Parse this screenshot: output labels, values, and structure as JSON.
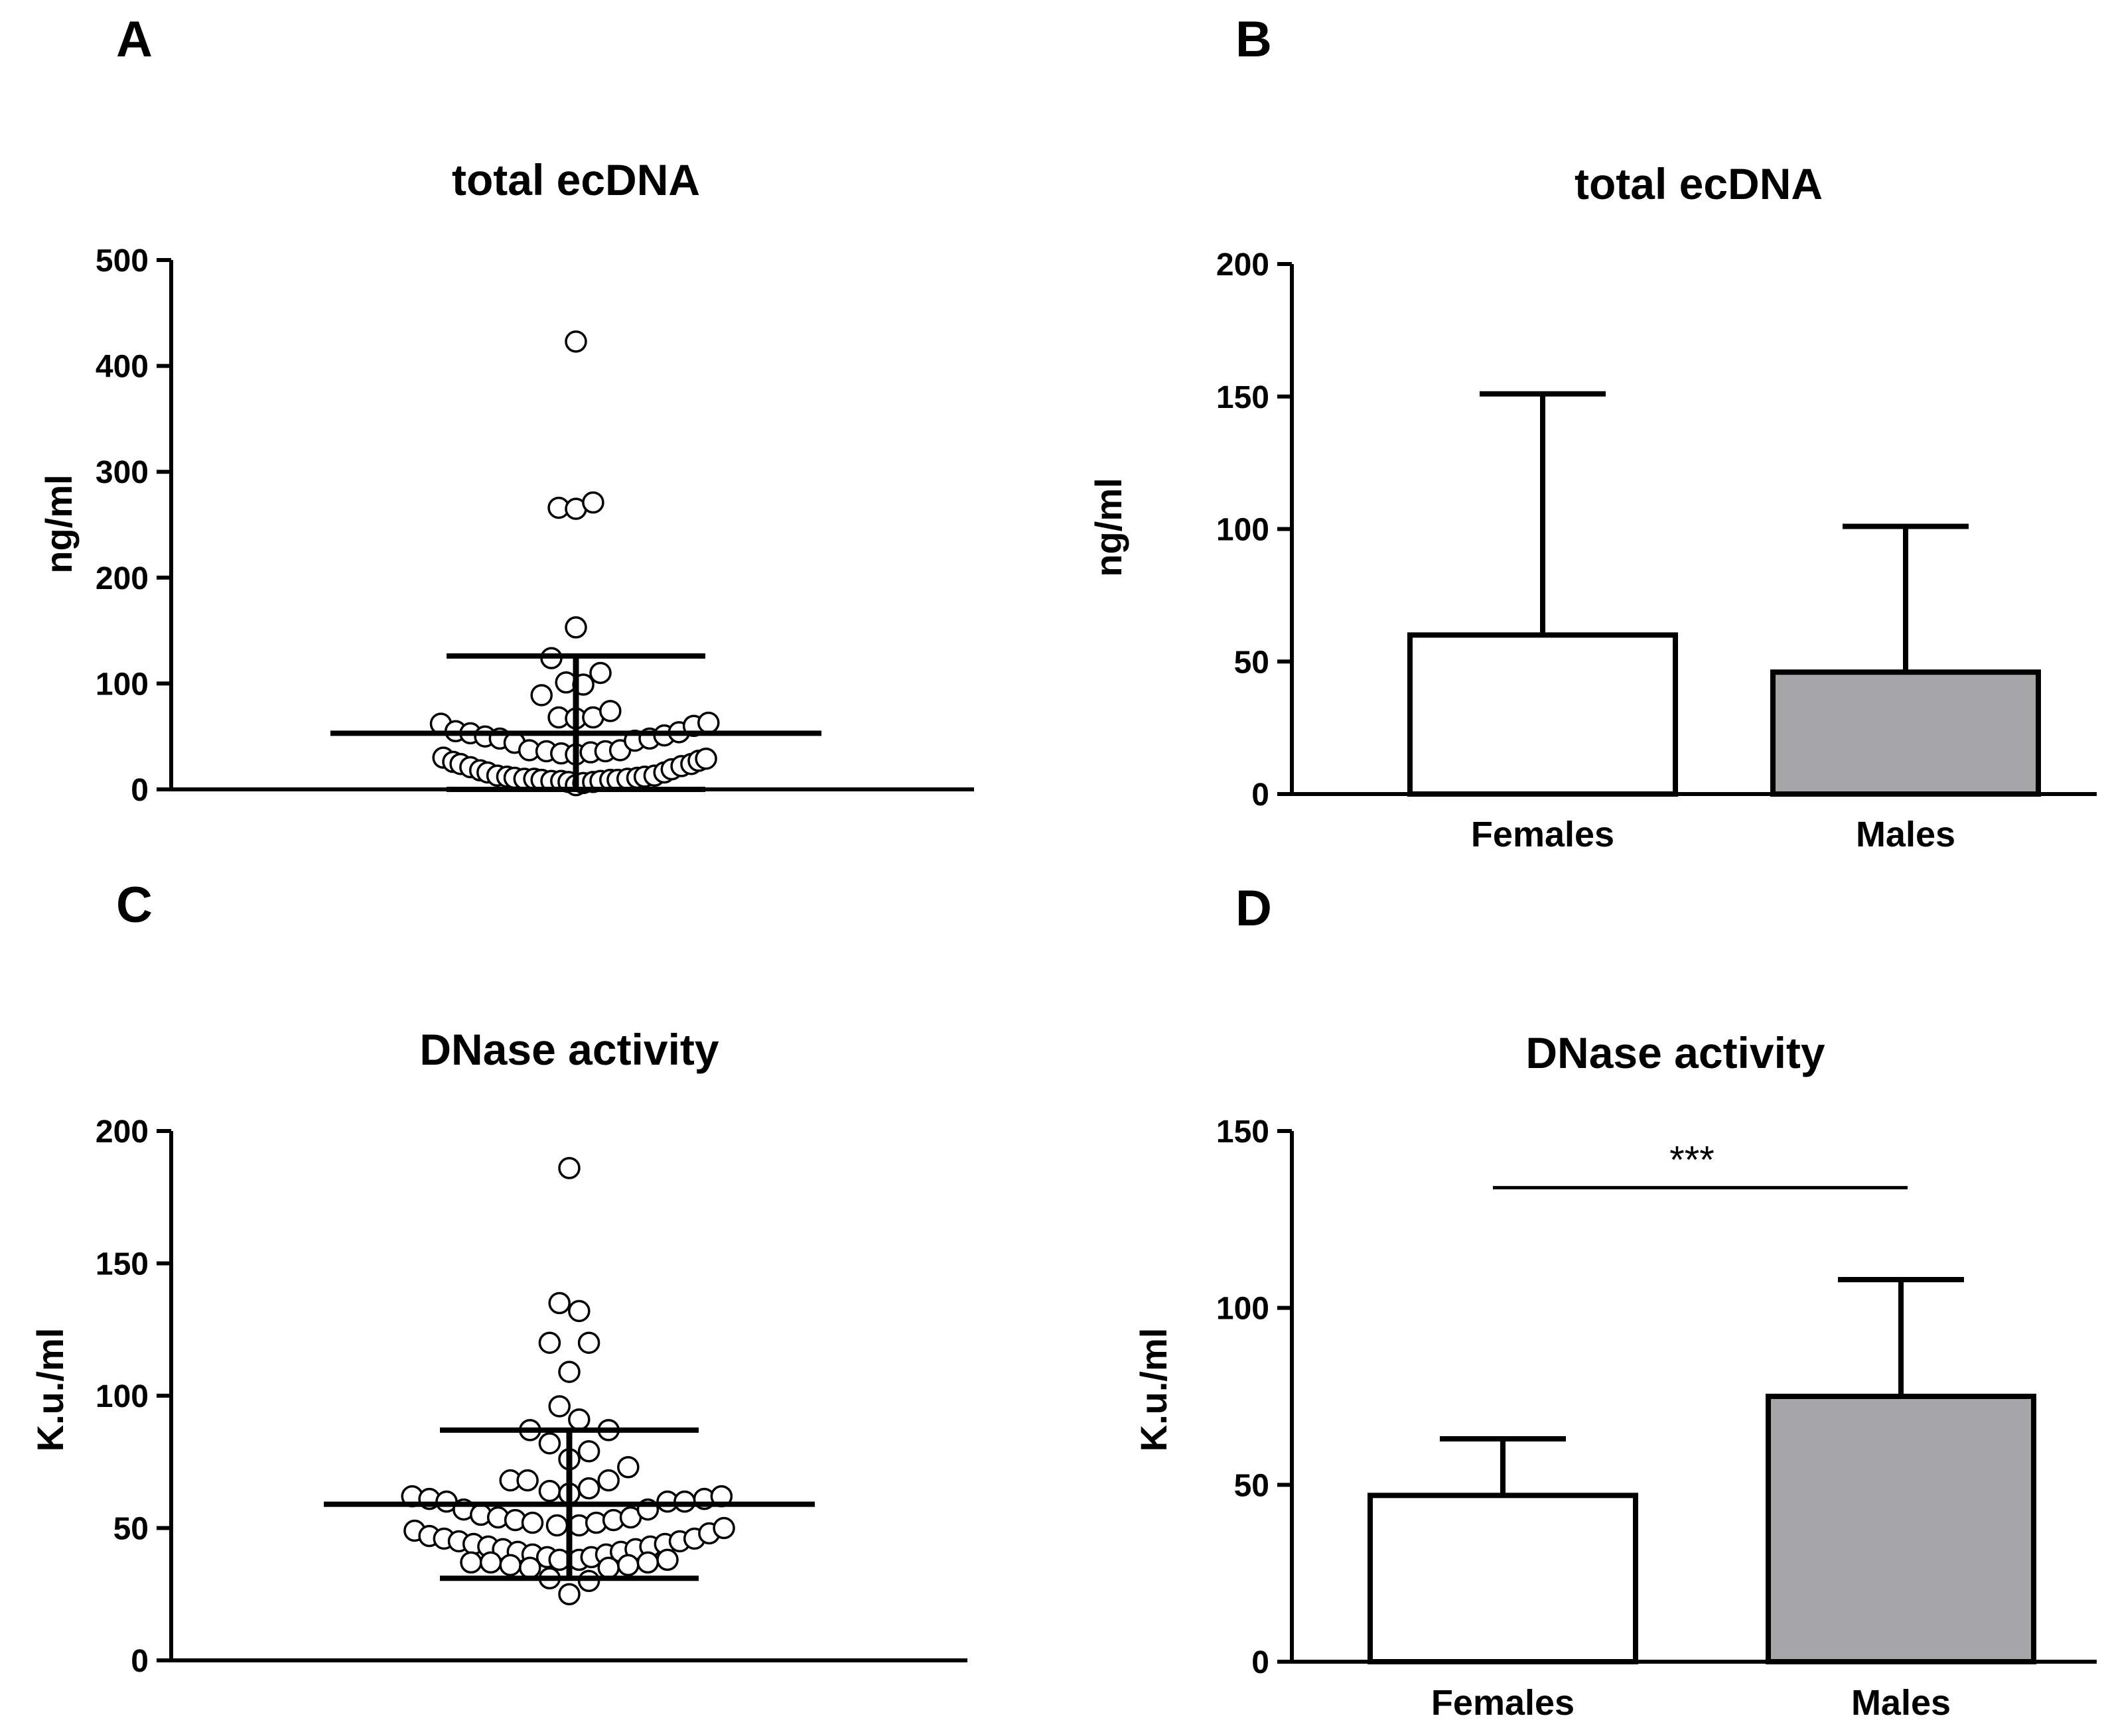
{
  "colors": {
    "ink": "#000000",
    "female_bar": "#ffffff",
    "male_bar": "#a6a6a9",
    "background": "#ffffff"
  },
  "chart_data": [
    {
      "panel": "A",
      "type": "scatter",
      "title": "total ecDNA",
      "xlabel": "",
      "ylabel": "ng/ml",
      "ylim": [
        0,
        500
      ],
      "yticks": [
        "0",
        "100",
        "200",
        "300",
        "400",
        "500"
      ],
      "ytick_values": [
        0,
        100,
        200,
        300,
        400,
        500
      ],
      "summary": {
        "mean": 53,
        "upper": 126,
        "lower": 0
      },
      "points": [
        {
          "x": 0.0,
          "y": 423
        },
        {
          "x": -0.07,
          "y": 266
        },
        {
          "x": 0.0,
          "y": 265
        },
        {
          "x": 0.07,
          "y": 271
        },
        {
          "x": 0.0,
          "y": 153
        },
        {
          "x": -0.1,
          "y": 124
        },
        {
          "x": 0.1,
          "y": 110
        },
        {
          "x": -0.04,
          "y": 101
        },
        {
          "x": 0.03,
          "y": 99
        },
        {
          "x": -0.14,
          "y": 89
        },
        {
          "x": -0.07,
          "y": 68
        },
        {
          "x": 0.0,
          "y": 67
        },
        {
          "x": 0.07,
          "y": 68
        },
        {
          "x": 0.14,
          "y": 74
        },
        {
          "x": -0.55,
          "y": 62
        },
        {
          "x": -0.49,
          "y": 55
        },
        {
          "x": -0.43,
          "y": 53
        },
        {
          "x": -0.37,
          "y": 50
        },
        {
          "x": -0.31,
          "y": 48
        },
        {
          "x": -0.25,
          "y": 44
        },
        {
          "x": -0.19,
          "y": 37
        },
        {
          "x": -0.12,
          "y": 36
        },
        {
          "x": -0.06,
          "y": 34
        },
        {
          "x": 0.0,
          "y": 33
        },
        {
          "x": 0.06,
          "y": 35
        },
        {
          "x": 0.12,
          "y": 36
        },
        {
          "x": 0.18,
          "y": 37
        },
        {
          "x": 0.24,
          "y": 46
        },
        {
          "x": 0.3,
          "y": 48
        },
        {
          "x": 0.36,
          "y": 51
        },
        {
          "x": 0.42,
          "y": 54
        },
        {
          "x": 0.48,
          "y": 60
        },
        {
          "x": 0.54,
          "y": 63
        },
        {
          "x": -0.54,
          "y": 30
        },
        {
          "x": -0.5,
          "y": 26
        },
        {
          "x": -0.47,
          "y": 24
        },
        {
          "x": -0.43,
          "y": 21
        },
        {
          "x": -0.39,
          "y": 18
        },
        {
          "x": -0.36,
          "y": 16
        },
        {
          "x": -0.32,
          "y": 13
        },
        {
          "x": -0.28,
          "y": 12
        },
        {
          "x": -0.25,
          "y": 11
        },
        {
          "x": -0.21,
          "y": 10
        },
        {
          "x": -0.17,
          "y": 10
        },
        {
          "x": -0.14,
          "y": 9
        },
        {
          "x": -0.1,
          "y": 8
        },
        {
          "x": -0.06,
          "y": 8
        },
        {
          "x": -0.03,
          "y": 7
        },
        {
          "x": 0.0,
          "y": 4
        },
        {
          "x": 0.03,
          "y": 6
        },
        {
          "x": 0.07,
          "y": 7
        },
        {
          "x": 0.1,
          "y": 8
        },
        {
          "x": 0.14,
          "y": 9
        },
        {
          "x": 0.17,
          "y": 9
        },
        {
          "x": 0.21,
          "y": 10
        },
        {
          "x": 0.25,
          "y": 11
        },
        {
          "x": 0.28,
          "y": 12
        },
        {
          "x": 0.32,
          "y": 13
        },
        {
          "x": 0.36,
          "y": 16
        },
        {
          "x": 0.39,
          "y": 19
        },
        {
          "x": 0.43,
          "y": 22
        },
        {
          "x": 0.47,
          "y": 24
        },
        {
          "x": 0.5,
          "y": 27
        },
        {
          "x": 0.53,
          "y": 29
        }
      ]
    },
    {
      "panel": "B",
      "type": "bar",
      "title": "total ecDNA",
      "xlabel": "",
      "ylabel": "ng/ml",
      "ylim": [
        0,
        200
      ],
      "yticks": [
        "0",
        "50",
        "100",
        "150",
        "200"
      ],
      "ytick_values": [
        0,
        50,
        100,
        150,
        200
      ],
      "categories": [
        "Females",
        "Males"
      ],
      "values": [
        60,
        46
      ],
      "error_upper": [
        151,
        101
      ]
    },
    {
      "panel": "C",
      "type": "scatter",
      "title": "DNase activity",
      "xlabel": "",
      "ylabel": "K.u./ml",
      "ylim": [
        0,
        200
      ],
      "yticks": [
        "0",
        "50",
        "100",
        "150",
        "200"
      ],
      "ytick_values": [
        0,
        50,
        100,
        150,
        200
      ],
      "summary": {
        "mean": 59,
        "upper": 87,
        "lower": 31
      },
      "points": [
        {
          "x": 0.0,
          "y": 186
        },
        {
          "x": -0.04,
          "y": 135
        },
        {
          "x": 0.04,
          "y": 132
        },
        {
          "x": -0.08,
          "y": 120
        },
        {
          "x": 0.08,
          "y": 120
        },
        {
          "x": 0.0,
          "y": 109
        },
        {
          "x": -0.04,
          "y": 96
        },
        {
          "x": 0.04,
          "y": 91
        },
        {
          "x": -0.16,
          "y": 87
        },
        {
          "x": 0.16,
          "y": 87
        },
        {
          "x": -0.08,
          "y": 82
        },
        {
          "x": 0.08,
          "y": 79
        },
        {
          "x": 0.0,
          "y": 76
        },
        {
          "x": 0.24,
          "y": 73
        },
        {
          "x": -0.24,
          "y": 68
        },
        {
          "x": -0.17,
          "y": 68
        },
        {
          "x": 0.08,
          "y": 65
        },
        {
          "x": 0.16,
          "y": 68
        },
        {
          "x": -0.08,
          "y": 64
        },
        {
          "x": 0.0,
          "y": 63
        },
        {
          "x": -0.64,
          "y": 62
        },
        {
          "x": -0.57,
          "y": 61
        },
        {
          "x": -0.5,
          "y": 60
        },
        {
          "x": -0.43,
          "y": 57
        },
        {
          "x": -0.36,
          "y": 55
        },
        {
          "x": -0.29,
          "y": 54
        },
        {
          "x": -0.22,
          "y": 53
        },
        {
          "x": -0.15,
          "y": 52
        },
        {
          "x": -0.05,
          "y": 51
        },
        {
          "x": 0.04,
          "y": 51
        },
        {
          "x": 0.11,
          "y": 52
        },
        {
          "x": 0.18,
          "y": 53
        },
        {
          "x": 0.25,
          "y": 54
        },
        {
          "x": 0.32,
          "y": 57
        },
        {
          "x": 0.4,
          "y": 60
        },
        {
          "x": 0.47,
          "y": 60
        },
        {
          "x": 0.55,
          "y": 61
        },
        {
          "x": 0.62,
          "y": 62
        },
        {
          "x": -0.63,
          "y": 49
        },
        {
          "x": -0.57,
          "y": 47
        },
        {
          "x": -0.51,
          "y": 46
        },
        {
          "x": -0.45,
          "y": 45
        },
        {
          "x": -0.39,
          "y": 44
        },
        {
          "x": -0.33,
          "y": 43
        },
        {
          "x": -0.27,
          "y": 42
        },
        {
          "x": -0.21,
          "y": 41
        },
        {
          "x": -0.15,
          "y": 40
        },
        {
          "x": -0.09,
          "y": 39
        },
        {
          "x": -0.04,
          "y": 38
        },
        {
          "x": 0.04,
          "y": 38
        },
        {
          "x": 0.09,
          "y": 39
        },
        {
          "x": 0.15,
          "y": 40
        },
        {
          "x": 0.21,
          "y": 41
        },
        {
          "x": 0.27,
          "y": 42
        },
        {
          "x": 0.33,
          "y": 43
        },
        {
          "x": 0.39,
          "y": 44
        },
        {
          "x": 0.45,
          "y": 45
        },
        {
          "x": 0.51,
          "y": 46
        },
        {
          "x": 0.57,
          "y": 48
        },
        {
          "x": 0.63,
          "y": 50
        },
        {
          "x": -0.4,
          "y": 37
        },
        {
          "x": -0.32,
          "y": 37
        },
        {
          "x": -0.24,
          "y": 36
        },
        {
          "x": -0.16,
          "y": 35
        },
        {
          "x": 0.16,
          "y": 35
        },
        {
          "x": 0.24,
          "y": 36
        },
        {
          "x": 0.32,
          "y": 37
        },
        {
          "x": 0.4,
          "y": 38
        },
        {
          "x": -0.08,
          "y": 31
        },
        {
          "x": 0.08,
          "y": 30
        },
        {
          "x": 0.0,
          "y": 25
        }
      ]
    },
    {
      "panel": "D",
      "type": "bar",
      "title": "DNase activity",
      "xlabel": "",
      "ylabel": "K.u./ml",
      "ylim": [
        0,
        150
      ],
      "yticks": [
        "0",
        "50",
        "100",
        "150"
      ],
      "ytick_values": [
        0,
        50,
        100,
        150
      ],
      "categories": [
        "Females",
        "Males"
      ],
      "values": [
        47,
        75
      ],
      "error_upper": [
        63,
        108
      ],
      "significance": {
        "label": "***",
        "y": 134
      }
    }
  ]
}
